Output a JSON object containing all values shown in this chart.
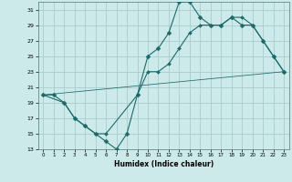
{
  "xlabel": "Humidex (Indice chaleur)",
  "bg_color": "#cceaea",
  "grid_color": "#aacccc",
  "line_color": "#1a6b6b",
  "xlim": [
    -0.5,
    23.5
  ],
  "ylim": [
    13,
    32
  ],
  "xticks": [
    0,
    1,
    2,
    3,
    4,
    5,
    6,
    7,
    8,
    9,
    10,
    11,
    12,
    13,
    14,
    15,
    16,
    17,
    18,
    19,
    20,
    21,
    22,
    23
  ],
  "yticks": [
    13,
    15,
    17,
    19,
    21,
    23,
    25,
    27,
    29,
    31
  ],
  "line1_x": [
    0,
    1,
    2,
    3,
    4,
    5,
    6,
    7,
    8,
    9,
    10,
    11,
    12,
    13,
    14,
    15,
    16,
    17,
    18,
    19,
    20,
    21,
    22,
    23
  ],
  "line1_y": [
    20,
    20,
    19,
    17,
    16,
    15,
    14,
    13,
    15,
    20,
    25,
    26,
    28,
    32,
    32,
    30,
    29,
    29,
    30,
    29,
    29,
    27,
    25,
    23
  ],
  "line2_x": [
    0,
    2,
    3,
    4,
    5,
    6,
    9,
    10,
    11,
    12,
    13,
    14,
    15,
    16,
    17,
    18,
    19,
    20,
    21,
    22,
    23
  ],
  "line2_y": [
    20,
    19,
    17,
    16,
    15,
    15,
    20,
    23,
    23,
    24,
    26,
    28,
    29,
    29,
    29,
    30,
    30,
    29,
    27,
    25,
    23
  ],
  "line3_x": [
    0,
    23
  ],
  "line3_y": [
    20,
    23
  ],
  "marker_size": 2.5,
  "linewidth": 0.8
}
